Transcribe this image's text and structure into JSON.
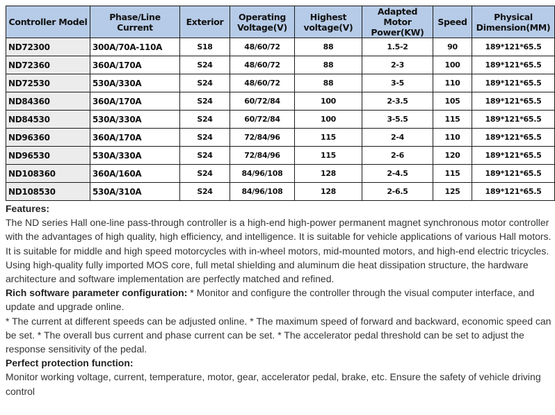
{
  "table": {
    "headers": [
      "Controller Model",
      "Phase/Line Current",
      "Exterior",
      "Operating Voltage(V)",
      "Highest voltage(V)",
      "Adapted Motor Power(KW)",
      "Speed",
      "Physical Dimension(MM)"
    ],
    "rows": [
      [
        "ND72300",
        "300A/70A-110A",
        "S18",
        "48/60/72",
        "88",
        "1.5-2",
        "90",
        "189*121*65.5"
      ],
      [
        "ND72360",
        "360A/170A",
        "S24",
        "48/60/72",
        "88",
        "2-3",
        "100",
        "189*121*65.5"
      ],
      [
        "ND72530",
        "530A/330A",
        "S24",
        "48/60/72",
        "88",
        "3-5",
        "110",
        "189*121*65.5"
      ],
      [
        "ND84360",
        "360A/170A",
        "S24",
        "60/72/84",
        "100",
        "2-3.5",
        "105",
        "189*121*65.5"
      ],
      [
        "ND84530",
        "530A/330A",
        "S24",
        "60/72/84",
        "100",
        "3-5.5",
        "115",
        "189*121*65.5"
      ],
      [
        "ND96360",
        "360A/170A",
        "S24",
        "72/84/96",
        "115",
        "2-4",
        "110",
        "189*121*65.5"
      ],
      [
        "ND96530",
        "530A/330A",
        "S24",
        "72/84/96",
        "115",
        "2-6",
        "120",
        "189*121*65.5"
      ],
      [
        "ND108360",
        "360A/160A",
        "S24",
        "84/96/108",
        "128",
        "2-4.5",
        "115",
        "189*121*65.5"
      ],
      [
        "ND108530",
        "530A/310A",
        "S24",
        "84/96/108",
        "128",
        "2-6.5",
        "125",
        "189*121*65.5"
      ]
    ]
  },
  "features": {
    "heading": "Features:",
    "body": "The ND series Hall one-line pass-through controller is a high-end high-power permanent magnet synchronous motor controller with the advantages of high quality, high efficiency, and intelligence. It is suitable for vehicle applications of various Hall motors. It is suitable for middle and high speed motorcycles with in-wheel motors, mid-mounted motors, and high-end electric tricycles. Using high-quality fully imported MOS core, full metal shielding and aluminum die heat dissipation structure, the hardware architecture and software implementation are perfectly matched and refined.",
    "software_heading": "Rich software parameter configuration:",
    "software_body": " * Monitor and configure the controller through the visual computer interface, and update and upgrade online.",
    "software_body2": "* The current at different speeds can be adjusted online. * The maximum speed of forward and backward, economic speed can be set. * The overall bus current and phase current can be set. * The accelerator pedal threshold can be set to adjust the response sensitivity of the pedal.",
    "protection_heading": "Perfect protection function:",
    "protection_body": "Monitor working voltage, current, temperature, motor, gear, accelerator pedal, brake, etc. Ensure the safety of vehicle driving control"
  }
}
